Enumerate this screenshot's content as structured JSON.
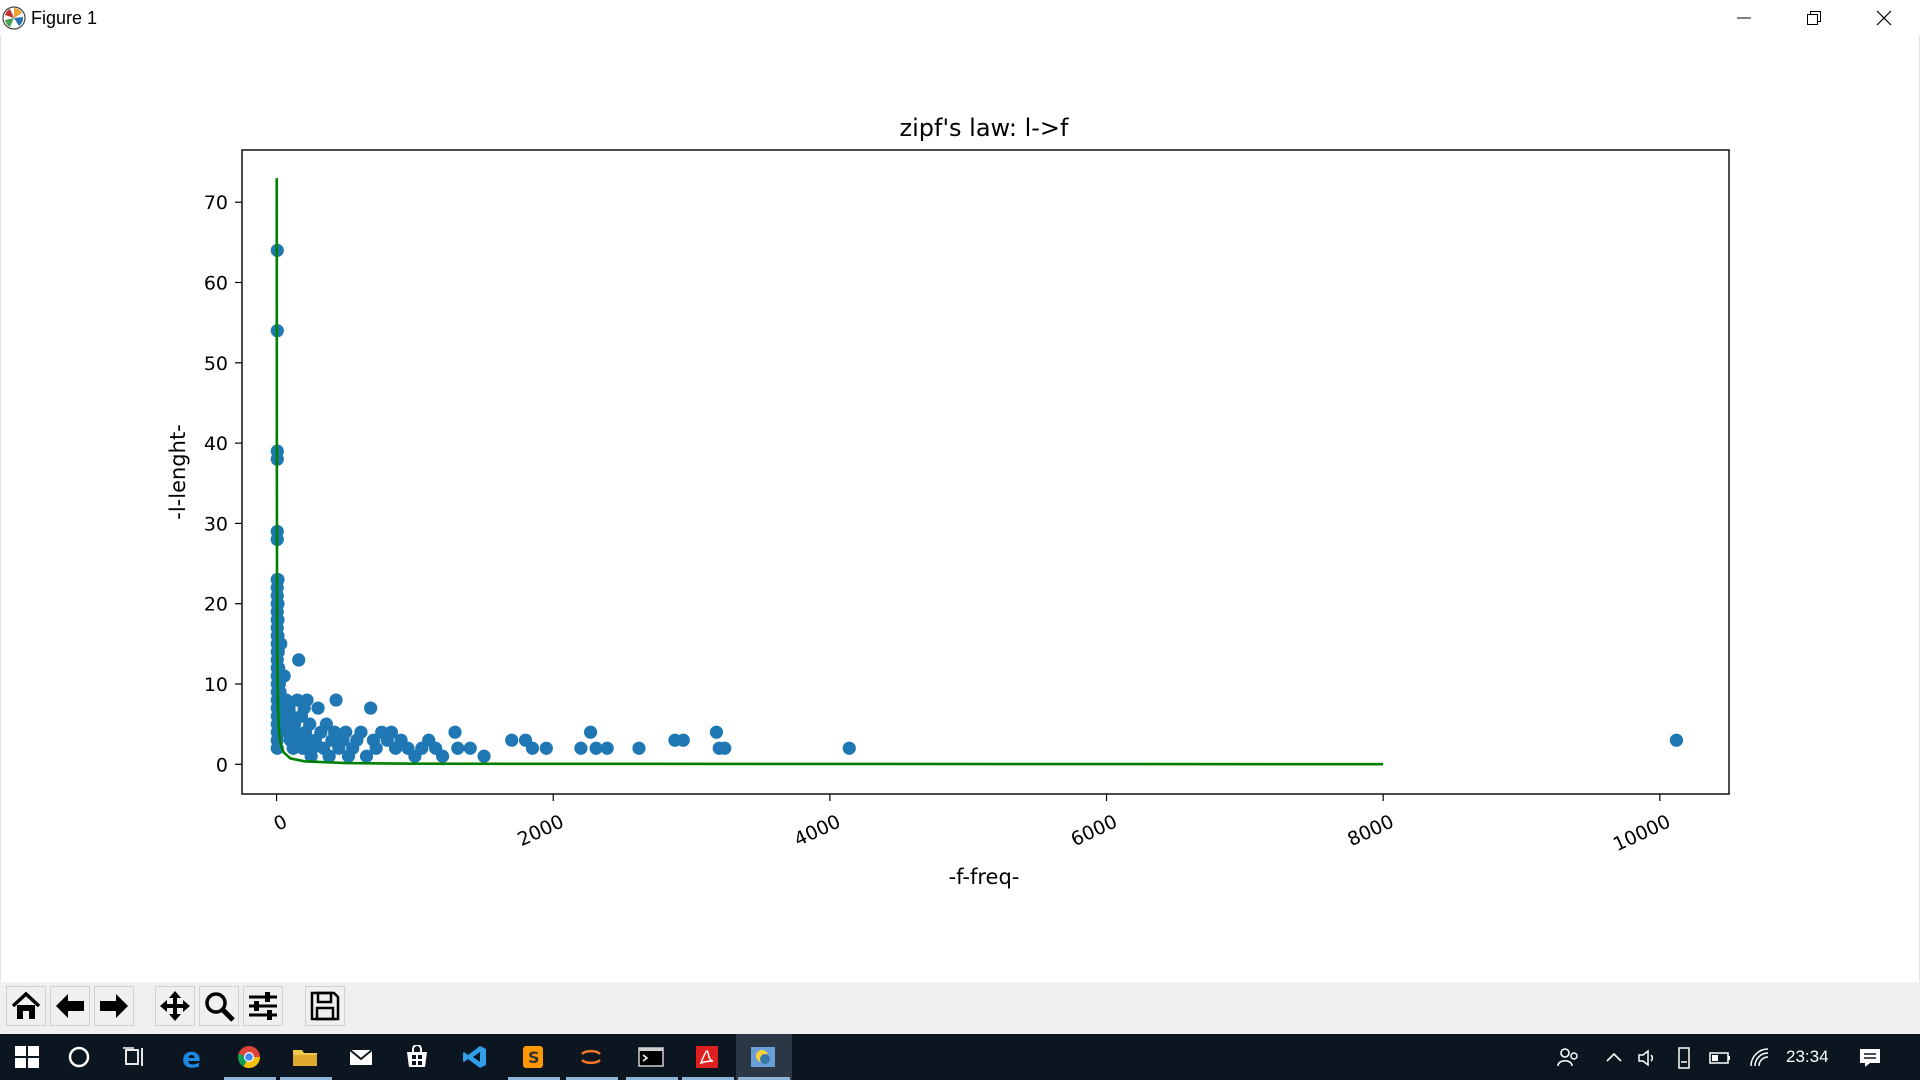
{
  "window": {
    "title": "Figure 1"
  },
  "chart_data": {
    "type": "scatter",
    "title": "zipf's law: l->f",
    "xlabel": "-f-freq-",
    "ylabel": "-l-lenght-",
    "xlim": [
      -250,
      10500
    ],
    "ylim": [
      -3.7,
      76.5
    ],
    "xticks": [
      0,
      2000,
      4000,
      6000,
      8000,
      10000
    ],
    "xtick_labels": [
      "0",
      "2000",
      "4000",
      "6000",
      "8000",
      "10000"
    ],
    "yticks": [
      0,
      10,
      20,
      30,
      40,
      50,
      60,
      70
    ],
    "ytick_labels": [
      "0",
      "10",
      "20",
      "30",
      "40",
      "50",
      "60",
      "70"
    ],
    "grid": false,
    "series": [
      {
        "type": "scatter",
        "color": "#1f77b4",
        "points": [
          [
            5,
            64
          ],
          [
            5,
            54
          ],
          [
            5,
            39
          ],
          [
            5,
            38
          ],
          [
            5,
            29
          ],
          [
            5,
            28
          ],
          [
            5,
            23
          ],
          [
            5,
            22
          ],
          [
            5,
            21
          ],
          [
            5,
            20
          ],
          [
            5,
            19
          ],
          [
            5,
            18
          ],
          [
            5,
            17
          ],
          [
            5,
            16
          ],
          [
            5,
            15
          ],
          [
            5,
            14
          ],
          [
            5,
            13
          ],
          [
            5,
            12
          ],
          [
            5,
            11
          ],
          [
            5,
            10
          ],
          [
            5,
            9
          ],
          [
            5,
            8
          ],
          [
            5,
            7
          ],
          [
            5,
            6
          ],
          [
            5,
            5
          ],
          [
            5,
            4
          ],
          [
            5,
            3
          ],
          [
            5,
            2
          ],
          [
            10,
            23
          ],
          [
            10,
            20
          ],
          [
            10,
            18
          ],
          [
            10,
            16
          ],
          [
            12,
            14
          ],
          [
            15,
            12
          ],
          [
            20,
            10
          ],
          [
            25,
            9
          ],
          [
            30,
            15
          ],
          [
            35,
            8
          ],
          [
            40,
            7
          ],
          [
            50,
            6
          ],
          [
            55,
            11
          ],
          [
            60,
            5
          ],
          [
            70,
            8
          ],
          [
            80,
            4
          ],
          [
            90,
            7
          ],
          [
            100,
            3
          ],
          [
            110,
            6
          ],
          [
            120,
            2
          ],
          [
            130,
            5
          ],
          [
            140,
            4
          ],
          [
            150,
            8
          ],
          [
            160,
            13
          ],
          [
            170,
            3
          ],
          [
            180,
            6
          ],
          [
            190,
            2
          ],
          [
            200,
            7
          ],
          [
            210,
            4
          ],
          [
            220,
            8
          ],
          [
            230,
            3
          ],
          [
            240,
            5
          ],
          [
            250,
            1
          ],
          [
            260,
            2
          ],
          [
            280,
            3
          ],
          [
            300,
            7
          ],
          [
            320,
            4
          ],
          [
            340,
            2
          ],
          [
            360,
            5
          ],
          [
            380,
            1
          ],
          [
            400,
            3
          ],
          [
            420,
            4
          ],
          [
            430,
            8
          ],
          [
            450,
            2
          ],
          [
            480,
            3
          ],
          [
            500,
            4
          ],
          [
            520,
            1
          ],
          [
            550,
            2
          ],
          [
            580,
            3
          ],
          [
            610,
            4
          ],
          [
            650,
            1
          ],
          [
            680,
            7
          ],
          [
            700,
            3
          ],
          [
            720,
            2
          ],
          [
            760,
            4
          ],
          [
            800,
            3
          ],
          [
            830,
            4
          ],
          [
            860,
            2
          ],
          [
            900,
            3
          ],
          [
            950,
            2
          ],
          [
            1000,
            1
          ],
          [
            1050,
            2
          ],
          [
            1100,
            3
          ],
          [
            1150,
            2
          ],
          [
            1200,
            1
          ],
          [
            1290,
            4
          ],
          [
            1310,
            2
          ],
          [
            1400,
            2
          ],
          [
            1500,
            1
          ],
          [
            1700,
            3
          ],
          [
            1800,
            3
          ],
          [
            1850,
            2
          ],
          [
            1950,
            2
          ],
          [
            2200,
            2
          ],
          [
            2270,
            4
          ],
          [
            2310,
            2
          ],
          [
            2390,
            2
          ],
          [
            2620,
            2
          ],
          [
            2880,
            3
          ],
          [
            2940,
            3
          ],
          [
            3180,
            4
          ],
          [
            3200,
            2
          ],
          [
            3240,
            2
          ],
          [
            4140,
            2
          ],
          [
            10120,
            3
          ]
        ]
      },
      {
        "type": "line",
        "color": "#008000",
        "points": [
          [
            1,
            73
          ],
          [
            2,
            36.5
          ],
          [
            3,
            24.3
          ],
          [
            4,
            18.3
          ],
          [
            5,
            14.6
          ],
          [
            7,
            10.4
          ],
          [
            10,
            7.3
          ],
          [
            15,
            4.9
          ],
          [
            20,
            3.7
          ],
          [
            30,
            2.4
          ],
          [
            50,
            1.5
          ],
          [
            100,
            0.73
          ],
          [
            200,
            0.37
          ],
          [
            500,
            0.15
          ],
          [
            1000,
            0.07
          ],
          [
            8000,
            0.01
          ]
        ]
      }
    ]
  },
  "toolbar": {
    "buttons": [
      {
        "name": "home-button",
        "icon": "home-icon"
      },
      {
        "name": "back-button",
        "icon": "arrow-left-icon"
      },
      {
        "name": "forward-button",
        "icon": "arrow-right-icon"
      },
      {
        "name": "pan-button",
        "icon": "move-icon"
      },
      {
        "name": "zoom-button",
        "icon": "magnifier-icon"
      },
      {
        "name": "configure-subplots-button",
        "icon": "sliders-icon"
      },
      {
        "name": "save-button",
        "icon": "floppy-disk-icon"
      }
    ]
  },
  "taskbar": {
    "clock": "23:34",
    "apps": [
      "windows-start-icon",
      "cortana-icon",
      "task-view-icon",
      "edge-icon",
      "chrome-icon",
      "file-explorer-icon",
      "mail-icon",
      "store-icon",
      "vscode-icon",
      "sublime-icon",
      "jupyter-icon",
      "terminal-icon",
      "acrobat-icon",
      "python-icon"
    ]
  }
}
